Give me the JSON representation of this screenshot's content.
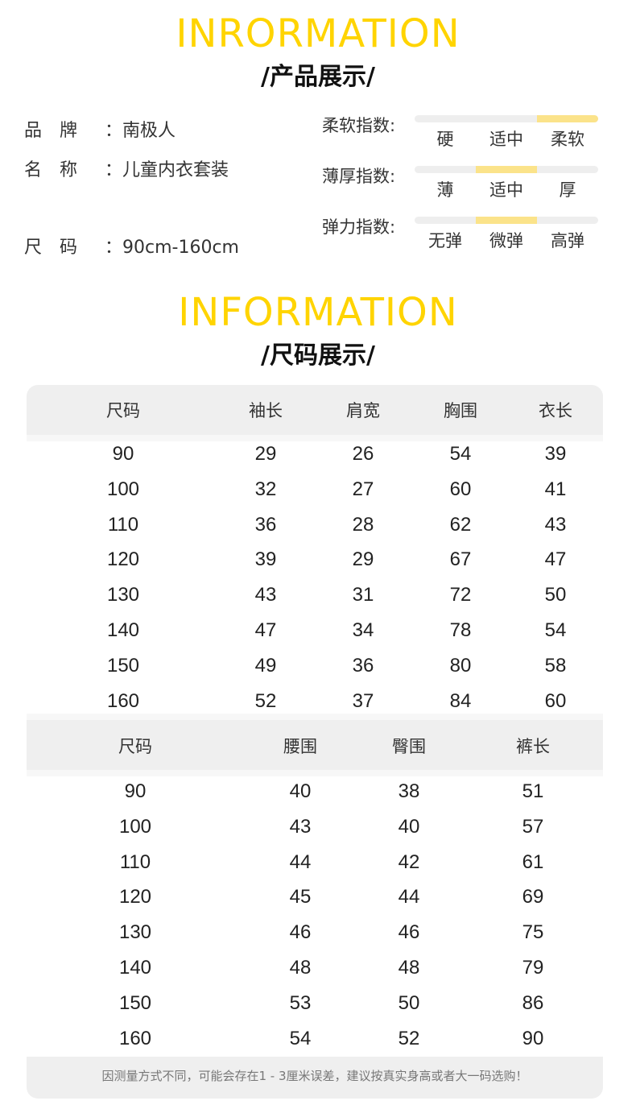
{
  "section1": {
    "title": "INRORMATION",
    "subtitle": "/产品展示/"
  },
  "product": {
    "brand": {
      "label": "品牌",
      "value": "：南极人"
    },
    "name": {
      "label": "名称",
      "value": "：儿童内衣套装"
    },
    "size": {
      "label": "尺码",
      "value": "：90cm-160cm"
    }
  },
  "indices": [
    {
      "label": "柔软指数:",
      "options": [
        "硬",
        "适中",
        "柔软"
      ],
      "selected": 2
    },
    {
      "label": "薄厚指数:",
      "options": [
        "薄",
        "适中",
        "厚"
      ],
      "selected": 1
    },
    {
      "label": "弹力指数:",
      "options": [
        "无弹",
        "微弹",
        "高弹"
      ],
      "selected": 1
    }
  ],
  "colors": {
    "accent": "#ffd400",
    "highlight": "#fbe38a",
    "header_bg": "#efefef"
  },
  "section2": {
    "title": "INFORMATION",
    "subtitle": "/尺码展示/"
  },
  "top_table": {
    "headers": [
      "尺码",
      "袖长",
      "肩宽",
      "胸围",
      "衣长"
    ],
    "rows": [
      [
        "90",
        "29",
        "26",
        "54",
        "39"
      ],
      [
        "100",
        "32",
        "27",
        "60",
        "41"
      ],
      [
        "110",
        "36",
        "28",
        "62",
        "43"
      ],
      [
        "120",
        "39",
        "29",
        "67",
        "47"
      ],
      [
        "130",
        "43",
        "31",
        "72",
        "50"
      ],
      [
        "140",
        "47",
        "34",
        "78",
        "54"
      ],
      [
        "150",
        "49",
        "36",
        "80",
        "58"
      ],
      [
        "160",
        "52",
        "37",
        "84",
        "60"
      ]
    ]
  },
  "bottom_table": {
    "headers": [
      "尺码",
      "腰围",
      "臀围",
      "裤长"
    ],
    "rows": [
      [
        "90",
        "40",
        "38",
        "51"
      ],
      [
        "100",
        "43",
        "40",
        "57"
      ],
      [
        "110",
        "44",
        "42",
        "61"
      ],
      [
        "120",
        "45",
        "44",
        "69"
      ],
      [
        "130",
        "46",
        "46",
        "75"
      ],
      [
        "140",
        "48",
        "48",
        "79"
      ],
      [
        "150",
        "53",
        "50",
        "86"
      ],
      [
        "160",
        "54",
        "52",
        "90"
      ]
    ]
  },
  "footer_note": "因测量方式不同，可能会存在1 - 3厘米误差，建议按真实身高或者大一码选购！"
}
